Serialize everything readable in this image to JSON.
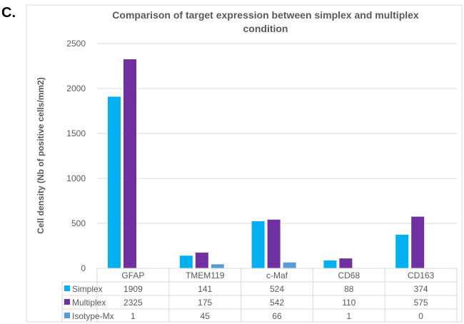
{
  "panel_label": "C.",
  "chart_data": {
    "type": "bar",
    "title_lines": [
      "Comparison of target expression between simplex and multiplex",
      "condition"
    ],
    "ylabel": "Cell density (Nb of positive cells/mm2)",
    "xlabel": "",
    "ylim": [
      0,
      2500
    ],
    "yticks": [
      "0",
      "500",
      "1000",
      "1500",
      "2000",
      "2500"
    ],
    "ytick_values": [
      0,
      500,
      1000,
      1500,
      2000,
      2500
    ],
    "grid": true,
    "legend": "data-table-below",
    "categories": [
      "GFAP",
      "TMEM119",
      "c-Maf",
      "CD68",
      "CD163"
    ],
    "series": [
      {
        "name": "Simplex",
        "color": "#00B0F0",
        "values": [
          1909,
          141,
          524,
          88,
          374
        ],
        "labels": [
          "1909",
          "141",
          "524",
          "88",
          "374"
        ]
      },
      {
        "name": "Multiplex",
        "color": "#7030A0",
        "values": [
          2325,
          175,
          542,
          110,
          575
        ],
        "labels": [
          "2325",
          "175",
          "542",
          "110",
          "575"
        ]
      },
      {
        "name": "Isotype-Mx",
        "color": "#5B9BD5",
        "values": [
          1,
          45,
          66,
          1,
          0
        ],
        "labels": [
          "1",
          "45",
          "66",
          "1",
          "0"
        ]
      }
    ]
  }
}
